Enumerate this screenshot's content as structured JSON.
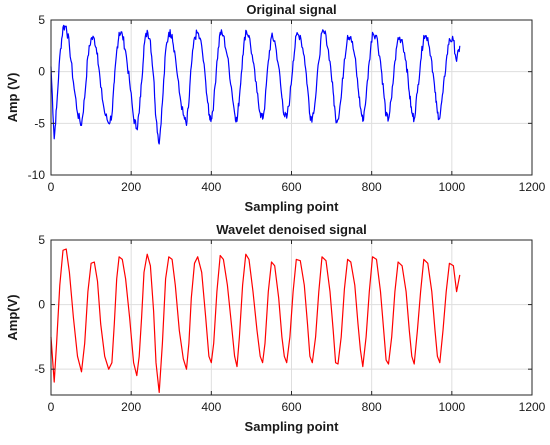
{
  "chart_data": [
    {
      "type": "line",
      "title": "Original signal",
      "xlabel": "Sampling point",
      "ylabel": "Amp (V)",
      "xlim": [
        0,
        1200
      ],
      "ylim": [
        -10,
        5
      ],
      "xticks": [
        "0",
        "200",
        "400",
        "600",
        "800",
        "1000",
        "1200"
      ],
      "yticks": [
        "5",
        "0",
        "-5",
        "-10"
      ],
      "grid": true,
      "legend": "none",
      "color": "#0000ff",
      "noisy": true,
      "x": [
        0,
        8,
        14,
        22,
        30,
        38,
        46,
        56,
        66,
        76,
        84,
        92,
        100,
        108,
        116,
        124,
        134,
        144,
        152,
        158,
        164,
        170,
        178,
        186,
        196,
        206,
        214,
        220,
        226,
        232,
        240,
        248,
        256,
        262,
        270,
        278,
        286,
        294,
        302,
        310,
        320,
        330,
        338,
        344,
        350,
        358,
        366,
        376,
        386,
        394,
        400,
        406,
        414,
        422,
        430,
        440,
        450,
        458,
        464,
        470,
        478,
        486,
        494,
        504,
        514,
        522,
        528,
        534,
        542,
        550,
        558,
        568,
        576,
        582,
        588,
        596,
        604,
        612,
        622,
        632,
        640,
        646,
        652,
        660,
        668,
        676,
        686,
        696,
        704,
        710,
        716,
        724,
        732,
        740,
        748,
        758,
        766,
        772,
        778,
        786,
        794,
        802,
        812,
        822,
        830,
        836,
        842,
        850,
        858,
        866,
        876,
        886,
        894,
        900,
        906,
        914,
        922,
        930,
        940,
        950,
        958,
        964,
        970,
        978,
        986,
        994,
        1004,
        1012,
        1020
      ],
      "y": [
        0.5,
        -6.5,
        -3.5,
        1.5,
        4.3,
        4.4,
        2.5,
        -1.0,
        -4.0,
        -5.2,
        -2.5,
        1.5,
        3.2,
        3.2,
        1.8,
        -1.5,
        -4.0,
        -5.0,
        -4.2,
        -1.0,
        2.0,
        3.8,
        3.6,
        2.0,
        -1.0,
        -4.5,
        -5.5,
        -4.0,
        -1.0,
        2.5,
        4.0,
        3.0,
        -0.5,
        -4.5,
        -7.0,
        -3.0,
        2.0,
        3.8,
        3.6,
        1.5,
        -2.0,
        -4.2,
        -5.2,
        -3.0,
        0.5,
        3.3,
        3.8,
        2.5,
        -1.0,
        -4.2,
        -4.6,
        -3.0,
        1.0,
        3.8,
        3.5,
        1.5,
        -1.5,
        -4.0,
        -4.8,
        -2.5,
        1.5,
        4.0,
        3.5,
        1.0,
        -2.0,
        -4.0,
        -4.6,
        -3.0,
        1.0,
        3.4,
        3.0,
        0.5,
        -2.5,
        -4.2,
        -4.5,
        -2.5,
        1.0,
        3.5,
        3.5,
        1.5,
        -1.5,
        -4.2,
        -4.5,
        -2.5,
        1.0,
        3.8,
        3.5,
        1.0,
        -2.0,
        -4.5,
        -4.6,
        -2.5,
        1.2,
        3.5,
        3.4,
        1.5,
        -1.5,
        -3.5,
        -4.8,
        -2.5,
        1.0,
        3.8,
        3.5,
        1.0,
        -2.0,
        -4.3,
        -4.6,
        -2.5,
        1.0,
        3.3,
        3.1,
        1.0,
        -2.0,
        -4.0,
        -4.6,
        -2.0,
        1.0,
        3.5,
        3.3,
        1.0,
        -2.0,
        -4.0,
        -4.5,
        -2.0,
        1.0,
        3.2,
        3.0,
        1.0,
        2.5
      ]
    },
    {
      "type": "line",
      "title": "Wavelet denoised signal",
      "xlabel": "Sampling point",
      "ylabel": "Amp(V)",
      "xlim": [
        0,
        1200
      ],
      "ylim": [
        -7,
        5
      ],
      "xticks": [
        "0",
        "200",
        "400",
        "600",
        "800",
        "1000",
        "1200"
      ],
      "yticks": [
        "5",
        "0",
        "-5"
      ],
      "grid": true,
      "legend": "none",
      "color": "#ff0000",
      "noisy": false,
      "x": [
        0,
        8,
        14,
        22,
        30,
        38,
        46,
        56,
        66,
        76,
        84,
        92,
        100,
        108,
        116,
        124,
        134,
        144,
        152,
        158,
        164,
        170,
        178,
        186,
        196,
        206,
        214,
        220,
        226,
        232,
        240,
        248,
        256,
        262,
        270,
        278,
        286,
        294,
        302,
        310,
        320,
        330,
        338,
        344,
        350,
        358,
        366,
        376,
        386,
        394,
        400,
        406,
        414,
        422,
        430,
        440,
        450,
        458,
        464,
        470,
        478,
        486,
        494,
        504,
        514,
        522,
        528,
        534,
        542,
        550,
        558,
        568,
        576,
        582,
        588,
        596,
        604,
        612,
        622,
        632,
        640,
        646,
        652,
        660,
        668,
        676,
        686,
        696,
        704,
        710,
        716,
        724,
        732,
        740,
        748,
        758,
        766,
        772,
        778,
        786,
        794,
        802,
        812,
        822,
        830,
        836,
        842,
        850,
        858,
        866,
        876,
        886,
        894,
        900,
        906,
        914,
        922,
        930,
        940,
        950,
        958,
        964,
        970,
        978,
        986,
        994,
        1004,
        1012,
        1020
      ],
      "y": [
        -2.5,
        -6.0,
        -3.0,
        1.5,
        4.2,
        4.3,
        2.5,
        -1.0,
        -4.0,
        -5.2,
        -3.0,
        1.0,
        3.2,
        3.3,
        1.8,
        -1.5,
        -4.0,
        -5.0,
        -4.5,
        -1.5,
        2.0,
        3.7,
        3.5,
        2.0,
        -1.0,
        -4.5,
        -5.5,
        -4.0,
        -1.0,
        2.5,
        3.9,
        3.0,
        -0.5,
        -4.5,
        -6.8,
        -3.0,
        2.0,
        3.7,
        3.5,
        1.5,
        -2.0,
        -4.2,
        -5.0,
        -3.0,
        0.5,
        3.2,
        3.7,
        2.5,
        -1.0,
        -4.0,
        -4.5,
        -3.0,
        1.0,
        3.8,
        3.5,
        1.5,
        -1.5,
        -4.0,
        -4.8,
        -2.5,
        1.5,
        3.9,
        3.5,
        1.0,
        -2.0,
        -4.0,
        -4.5,
        -3.0,
        1.0,
        3.3,
        3.0,
        0.5,
        -2.5,
        -4.0,
        -4.5,
        -2.5,
        1.0,
        3.5,
        3.4,
        1.5,
        -1.5,
        -4.0,
        -4.5,
        -2.5,
        1.0,
        3.7,
        3.4,
        1.0,
        -2.0,
        -4.5,
        -4.6,
        -2.5,
        1.2,
        3.5,
        3.3,
        1.5,
        -1.5,
        -3.5,
        -4.8,
        -2.5,
        1.0,
        3.7,
        3.5,
        1.0,
        -2.0,
        -4.3,
        -4.6,
        -2.5,
        1.0,
        3.3,
        3.0,
        1.0,
        -2.0,
        -4.0,
        -4.6,
        -2.0,
        1.0,
        3.5,
        3.2,
        1.0,
        -2.0,
        -4.0,
        -4.5,
        -2.0,
        1.0,
        3.2,
        3.0,
        1.0,
        2.3
      ]
    }
  ]
}
